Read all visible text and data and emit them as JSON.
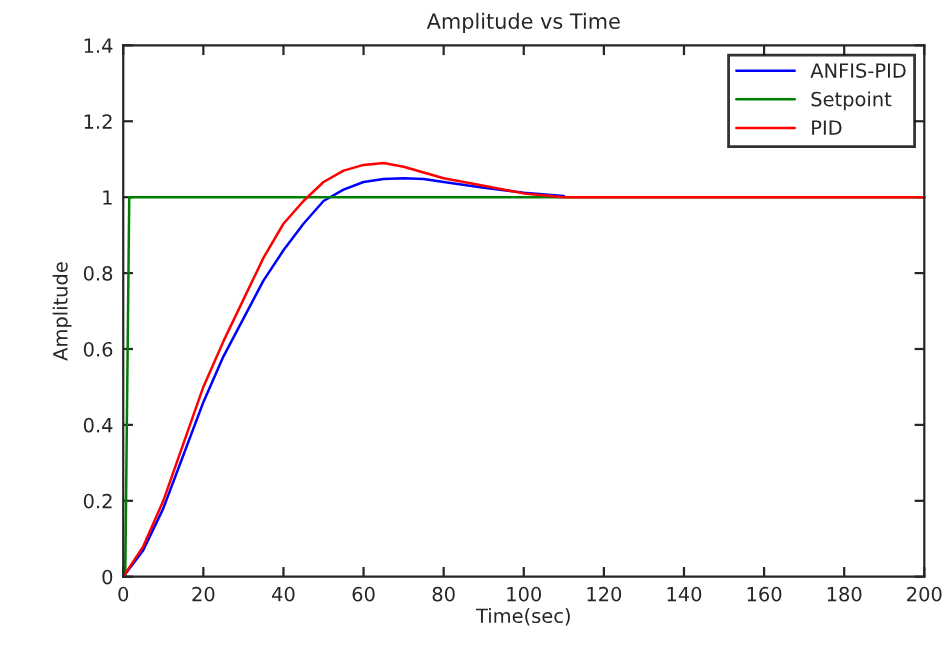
{
  "chart_data": {
    "type": "line",
    "title": "Amplitude vs Time",
    "xlabel": "Time(sec)",
    "ylabel": "Amplitude",
    "xlim": [
      0,
      200
    ],
    "ylim": [
      0,
      1.4
    ],
    "xticks": [
      0,
      20,
      40,
      60,
      80,
      100,
      120,
      140,
      160,
      180,
      200
    ],
    "yticks": [
      0,
      0.2,
      0.4,
      0.6,
      0.8,
      1,
      1.2,
      1.4
    ],
    "grid": false,
    "legend": "top right",
    "line_style": "solid",
    "marker": "none",
    "series": [
      {
        "name": "ANFIS-PID",
        "color": "#0000ff",
        "x": [
          0,
          5,
          10,
          15,
          20,
          25,
          30,
          35,
          40,
          45,
          50,
          55,
          60,
          65,
          70,
          75,
          80,
          90,
          100,
          110
        ],
        "values": [
          0,
          0.07,
          0.18,
          0.32,
          0.46,
          0.58,
          0.68,
          0.78,
          0.86,
          0.93,
          0.99,
          1.02,
          1.04,
          1.048,
          1.05,
          1.048,
          1.04,
          1.025,
          1.012,
          1.003
        ]
      },
      {
        "name": "Setpoint",
        "color": "#008000",
        "x": [
          0.5,
          1.5,
          200
        ],
        "values": [
          0,
          1,
          1
        ]
      },
      {
        "name": "PID",
        "color": "#ff0000",
        "x": [
          0,
          5,
          10,
          15,
          20,
          25,
          30,
          35,
          40,
          45,
          50,
          55,
          60,
          65,
          70,
          75,
          80,
          90,
          100,
          110,
          120,
          200
        ],
        "values": [
          0,
          0.08,
          0.2,
          0.35,
          0.5,
          0.62,
          0.73,
          0.84,
          0.93,
          0.99,
          1.04,
          1.07,
          1.085,
          1.09,
          1.08,
          1.065,
          1.05,
          1.03,
          1.01,
          1.0,
          1.0,
          1.0
        ]
      }
    ]
  }
}
